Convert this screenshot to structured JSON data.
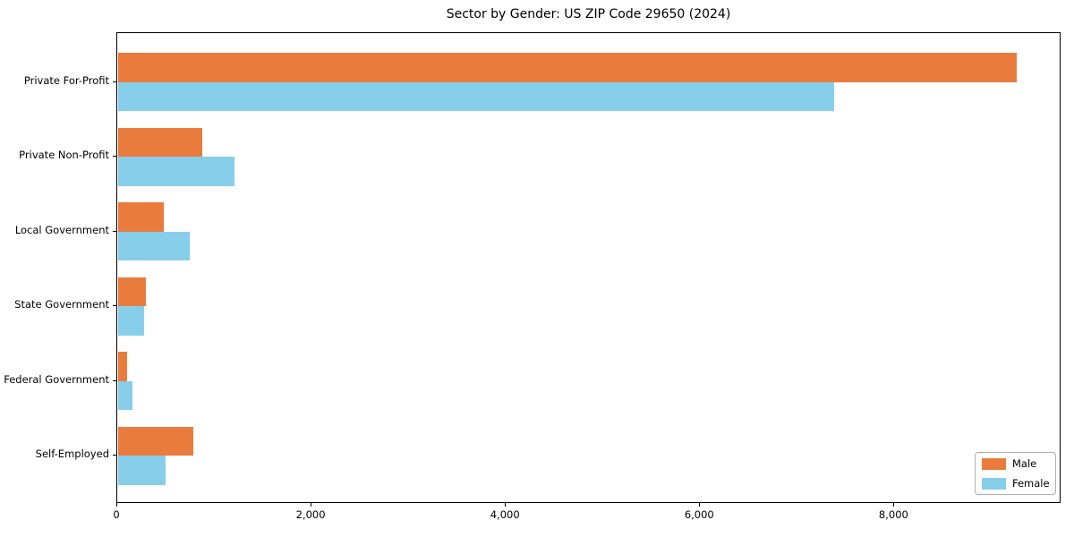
{
  "title": "Sector by Gender: US ZIP Code 29650 (2024)",
  "chart_data": {
    "type": "bar",
    "orientation": "horizontal",
    "title": "Sector by Gender: US ZIP Code 29650 (2024)",
    "categories": [
      "Private For-Profit",
      "Private Non-Profit",
      "Local Government",
      "State Government",
      "Federal Government",
      "Self-Employed"
    ],
    "series": [
      {
        "name": "Male",
        "color": "#E97C3C",
        "values": [
          9250,
          865,
          470,
          285,
          90,
          775
        ]
      },
      {
        "name": "Female",
        "color": "#87CEEB",
        "values": [
          7370,
          1200,
          735,
          265,
          150,
          490
        ]
      }
    ],
    "xlabel": "",
    "ylabel": "",
    "xlim": [
      0,
      9710
    ],
    "xticks": [
      0,
      2000,
      4000,
      6000,
      8000
    ],
    "xtick_labels": [
      "0",
      "2,000",
      "4,000",
      "6,000",
      "8,000"
    ],
    "grid": false,
    "legend": {
      "position": "lower right",
      "entries": [
        "Male",
        "Female"
      ]
    }
  },
  "colors": {
    "male": "#E97C3C",
    "female": "#87CEEB",
    "axis": "#000000",
    "background": "#FFFFFF"
  }
}
